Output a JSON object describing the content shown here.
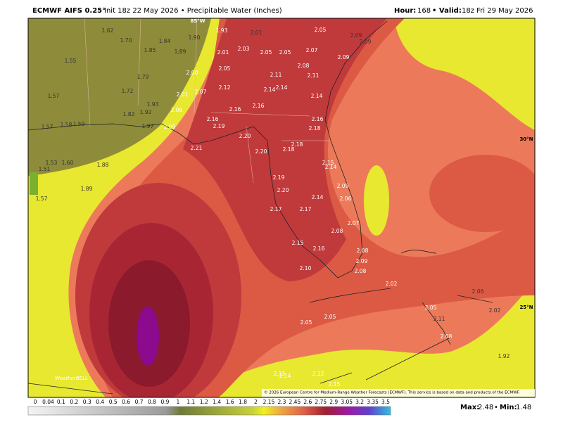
{
  "header": {
    "model": "ECMWF AIFS 0.25°",
    "info": "Init 18z 22 May 2026 • Precipitable Water (Inches)",
    "hour_label": "Hour:",
    "hour": "168",
    "valid_label": "• Valid:",
    "valid": "18z Fri 29 May 2026"
  },
  "map": {
    "grid_labels": [
      "85°W",
      "30°N",
      "25°N"
    ],
    "point_labels": [
      "1.62",
      "1.70",
      "1.84",
      "1.85",
      "1.89",
      "1.55",
      "1.79",
      "1.57",
      "1.72",
      "1.82",
      "1.92",
      "1.93",
      "1.57",
      "1.58",
      "1.59",
      "1.97",
      "1.53",
      "1.60",
      "1.51",
      "1.88",
      "1.89",
      "1.57",
      "1.90",
      "1.93",
      "2.01",
      "2.05",
      "2.09",
      "2.09",
      "2.01",
      "2.03",
      "2.05",
      "2.05",
      "2.07",
      "2.08",
      "2.09",
      "2.00",
      "2.05",
      "2.01",
      "2.07",
      "2.12",
      "2.11",
      "2.11",
      "2.14",
      "2.14",
      "2.14",
      "2.06",
      "2.16",
      "2.16",
      "2.16",
      "2.19",
      "2.16",
      "2.09",
      "2.18",
      "2.20",
      "2.21",
      "2.18",
      "2.18",
      "2.20",
      "2.15",
      "2.14",
      "2.19",
      "2.09",
      "2.20",
      "2.14",
      "2.06",
      "2.17",
      "2.17",
      "2.07",
      "2.08",
      "2.15",
      "2.16",
      "2.08",
      "2.09",
      "2.10",
      "2.08",
      "2.02",
      "2.06",
      "2.05",
      "2.02",
      "2.11",
      "2.05",
      "2.05",
      "2.08",
      "1.92",
      "2.15",
      "2.14",
      "2.12",
      "2.15"
    ],
    "copyright": "© 2026 European Centre for Medium-Range Weather Forecasts (ECMWF). This service is based on data and products of the ECMWF.",
    "logo": "WeatherBELL"
  },
  "colorbar": {
    "labels": [
      "0",
      "0.04",
      "0.1",
      "0.2",
      "0.3",
      "0.4",
      "0.5",
      "0.6",
      "0.7",
      "0.8",
      "0.9",
      "1",
      "1.1",
      "1.2",
      "1.4",
      "1.6",
      "1.8",
      "2",
      "2.15",
      "2.3",
      "2.45",
      "2.6",
      "2.75",
      "2.9",
      "3.05",
      "3.2",
      "3.35",
      "3.5"
    ]
  },
  "stats": {
    "max_label": "Max:",
    "max": "2.48",
    "separator": "•",
    "min_label": "Min:",
    "min": "1.48"
  }
}
